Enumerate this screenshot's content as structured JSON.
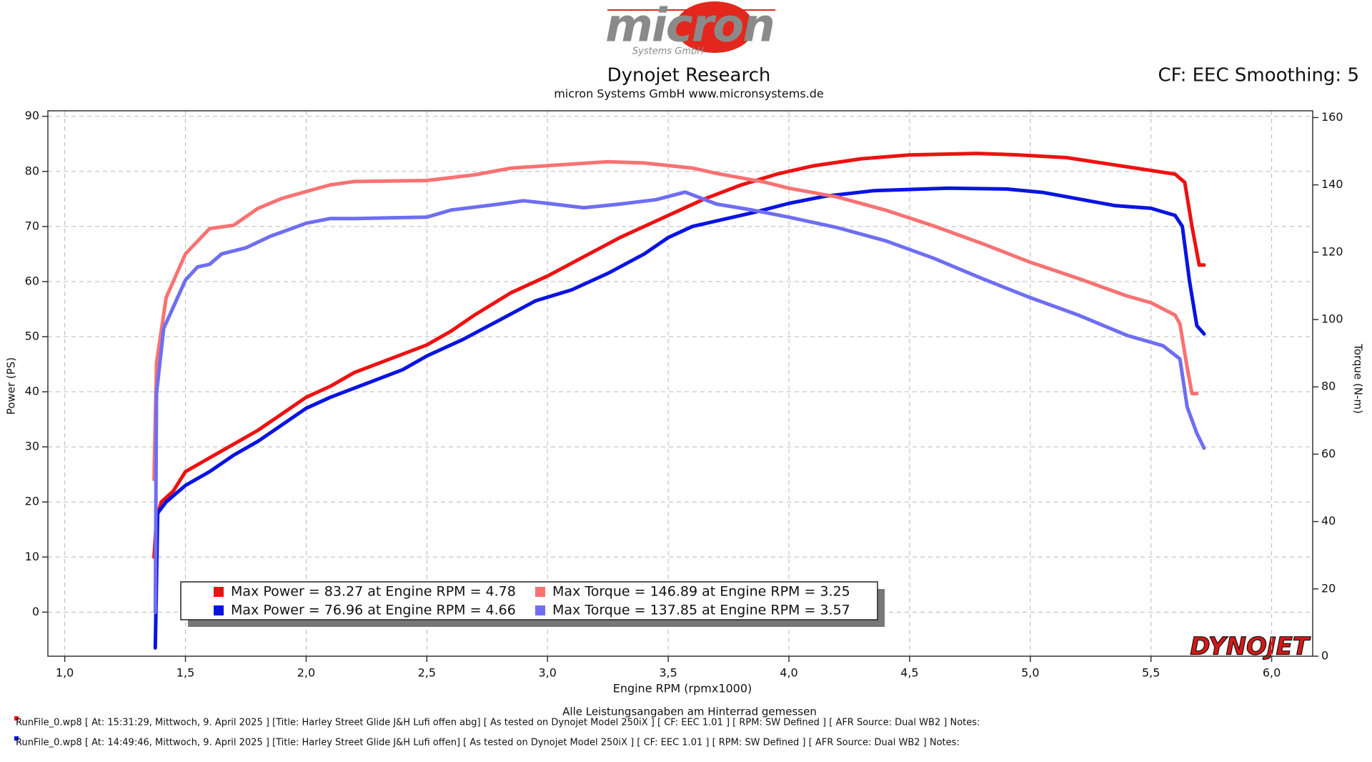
{
  "logo": {
    "name": "micron",
    "tagline": "Systems GmbH"
  },
  "chart_data": {
    "type": "line",
    "title": "Dynojet Research",
    "subtitle": "micron Systems GmbH  www.micronsystems.de",
    "corner_note": "CF: EEC Smoothing: 5",
    "x_label": "Engine RPM (rpmx1000)",
    "y_label": "Power (PS)",
    "y2_label": "Torque (N-m)",
    "footnote": "Alle Leistungsangaben am Hinterrad gemessen",
    "watermark": "DYNOJET",
    "grid": true,
    "xlim": [
      0.93,
      6.17
    ],
    "xticks": [
      {
        "value": 1.0,
        "label": "1,0"
      },
      {
        "value": 1.5,
        "label": "1,5"
      },
      {
        "value": 2.0,
        "label": "2,0"
      },
      {
        "value": 2.5,
        "label": "2,5"
      },
      {
        "value": 3.0,
        "label": "3,0"
      },
      {
        "value": 3.5,
        "label": "3,5"
      },
      {
        "value": 4.0,
        "label": "4,0"
      },
      {
        "value": 4.5,
        "label": "4,5"
      },
      {
        "value": 5.0,
        "label": "5,0"
      },
      {
        "value": 5.5,
        "label": "5,5"
      },
      {
        "value": 6.0,
        "label": "6,0"
      }
    ],
    "ylim": [
      -8,
      91
    ],
    "yticks": [
      0,
      10,
      20,
      30,
      40,
      50,
      60,
      70,
      80,
      90
    ],
    "y2lim": [
      0,
      162
    ],
    "y2ticks": [
      0,
      20,
      40,
      60,
      80,
      100,
      120,
      140,
      160
    ],
    "series": [
      {
        "name": "Max Power = 83.27 at Engine RPM = 4.78",
        "color": "#ee1111",
        "axis": "y",
        "x": [
          1.37,
          1.38,
          1.4,
          1.45,
          1.5,
          1.6,
          1.7,
          1.8,
          1.9,
          2.0,
          2.1,
          2.2,
          2.35,
          2.5,
          2.6,
          2.7,
          2.85,
          3.0,
          3.15,
          3.3,
          3.45,
          3.55,
          3.65,
          3.8,
          3.95,
          4.1,
          4.3,
          4.5,
          4.78,
          4.95,
          5.15,
          5.3,
          5.45,
          5.6,
          5.64,
          5.67,
          5.7,
          5.72
        ],
        "values": [
          10,
          17,
          20,
          22,
          25.5,
          28,
          30.5,
          33,
          36,
          39,
          41,
          43.5,
          46,
          48.5,
          51,
          54,
          58,
          61,
          64.5,
          68,
          71,
          73,
          75,
          77.5,
          79.5,
          81,
          82.3,
          83,
          83.27,
          83,
          82.5,
          81.5,
          80.5,
          79.5,
          78,
          70,
          63,
          63
        ]
      },
      {
        "name": "Max Power = 76.96 at Engine RPM = 4.66",
        "color": "#0a14e0",
        "axis": "y",
        "x": [
          1.375,
          1.385,
          1.42,
          1.5,
          1.6,
          1.7,
          1.8,
          1.9,
          2.0,
          2.1,
          2.25,
          2.4,
          2.5,
          2.65,
          2.8,
          2.95,
          3.1,
          3.25,
          3.4,
          3.5,
          3.6,
          3.7,
          3.85,
          4.0,
          4.15,
          4.35,
          4.66,
          4.9,
          5.05,
          5.2,
          5.35,
          5.5,
          5.6,
          5.63,
          5.66,
          5.69,
          5.72
        ],
        "values": [
          -6.5,
          18,
          20,
          23,
          25.5,
          28.5,
          31,
          34,
          37,
          39,
          41.5,
          44,
          46.5,
          49.5,
          53,
          56.5,
          58.5,
          61.5,
          65,
          68,
          70,
          71,
          72.5,
          74.2,
          75.5,
          76.5,
          76.96,
          76.8,
          76.2,
          75,
          73.8,
          73.3,
          72,
          70,
          60,
          52,
          50.5
        ]
      },
      {
        "name": "Max Torque = 146.89 at Engine RPM = 3.25",
        "color": "#f87272",
        "axis": "y2",
        "x": [
          1.37,
          1.38,
          1.42,
          1.5,
          1.6,
          1.7,
          1.8,
          1.9,
          2.0,
          2.1,
          2.2,
          2.5,
          2.7,
          2.85,
          3.0,
          3.25,
          3.4,
          3.6,
          3.7,
          3.9,
          4.0,
          4.2,
          4.4,
          4.6,
          4.8,
          5.0,
          5.2,
          5.4,
          5.5,
          5.6,
          5.62,
          5.65,
          5.67,
          5.69
        ],
        "values": [
          52.5,
          87,
          106.5,
          119.5,
          127,
          128,
          133,
          136,
          138,
          140,
          141,
          141.3,
          143,
          145,
          145.7,
          146.89,
          146.5,
          145,
          143.4,
          140.8,
          139,
          136.4,
          132.5,
          127.8,
          122.6,
          117,
          112.2,
          107,
          105,
          101.3,
          98.7,
          85.7,
          78,
          78
        ]
      },
      {
        "name": "Max Torque = 137.85 at Engine RPM = 3.57",
        "color": "#6e6ef2",
        "axis": "y2",
        "x": [
          1.375,
          1.38,
          1.41,
          1.5,
          1.55,
          1.6,
          1.65,
          1.75,
          1.85,
          1.9,
          2.0,
          2.1,
          2.2,
          2.5,
          2.6,
          2.8,
          2.9,
          3.0,
          3.15,
          3.3,
          3.45,
          3.57,
          3.7,
          3.85,
          4.0,
          4.2,
          4.4,
          4.6,
          4.8,
          5.0,
          5.2,
          5.4,
          5.55,
          5.62,
          5.65,
          5.69,
          5.72
        ],
        "values": [
          13,
          78,
          97.4,
          111.7,
          115.6,
          116.4,
          119.5,
          121.3,
          124.7,
          126,
          128.6,
          130,
          130,
          130.4,
          132.5,
          134.3,
          135.3,
          134.5,
          133.2,
          134.3,
          135.6,
          137.85,
          134.3,
          132.5,
          130.4,
          127.3,
          123.4,
          118.2,
          112.2,
          106.5,
          101.3,
          95.3,
          92.2,
          88.3,
          74,
          66.2,
          61.8
        ]
      }
    ]
  },
  "run_files": [
    {
      "color": "#ee1111",
      "text": "RunFile_0.wp8 [ At: 15:31:29, Mittwoch, 9. April 2025 ] [Title: Harley Street Glide J&H Lufi offen abg]  [ As tested on Dynojet Model 250iX ] [ CF: EEC 1.01 ] [ RPM: SW Defined ] [ AFR Source: Dual WB2 ] Notes:"
    },
    {
      "color": "#0a14e0",
      "text": "RunFile_0.wp8 [ At: 14:49:46, Mittwoch, 9. April 2025 ] [Title: Harley Street Glide J&H Lufi offen]  [ As tested on Dynojet Model 250iX ] [ CF: EEC 1.01 ] [ RPM: SW Defined ] [ AFR Source: Dual WB2 ] Notes:"
    }
  ]
}
